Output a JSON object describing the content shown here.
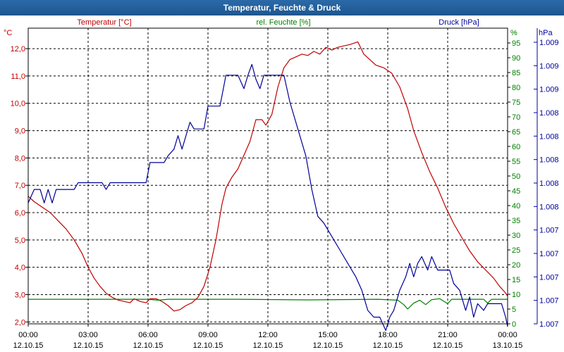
{
  "window": {
    "title": "Temperatur, Feuchte & Druck"
  },
  "colors": {
    "temperature": "#c00000",
    "humidity": "#008000",
    "pressure": "#000099",
    "grid": "#000000",
    "title_bg": "#1f5a94"
  },
  "chart_data": {
    "type": "line",
    "title": "Temperatur, Feuchte & Druck",
    "x_range_hours": [
      0,
      24
    ],
    "x_ticks": [
      {
        "time": "00:00",
        "date": "12.10.15"
      },
      {
        "time": "03:00",
        "date": "12.10.15"
      },
      {
        "time": "06:00",
        "date": "12.10.15"
      },
      {
        "time": "09:00",
        "date": "12.10.15"
      },
      {
        "time": "12:00",
        "date": "12.10.15"
      },
      {
        "time": "15:00",
        "date": "12.10.15"
      },
      {
        "time": "18:00",
        "date": "12.10.15"
      },
      {
        "time": "21:00",
        "date": "12.10.15"
      },
      {
        "time": "00:00",
        "date": "13.10.15"
      }
    ],
    "axes": {
      "temperature": {
        "label": "Temperatur [°C]",
        "unit": "°C",
        "ylim": [
          1.93,
          12.75
        ],
        "ticks": [
          "2,0",
          "3,0",
          "4,0",
          "5,0",
          "6,0",
          "7,0",
          "8,0",
          "9,0",
          "10,0",
          "11,0",
          "12,0"
        ]
      },
      "humidity": {
        "label": "rel. Feuchte [%]",
        "unit": "%",
        "ylim": [
          0,
          100
        ],
        "ticks": [
          "0",
          "5",
          "10",
          "15",
          "20",
          "25",
          "30",
          "35",
          "40",
          "45",
          "50",
          "55",
          "60",
          "65",
          "70",
          "75",
          "80",
          "85",
          "90",
          "95"
        ]
      },
      "pressure": {
        "label": "Druck [hPa]",
        "unit": "hPa",
        "ylim": [
          1007.0,
          1009.2
        ],
        "ticks": [
          "1.007",
          "1.007",
          "1.007",
          "1.007",
          "1.007",
          "1.008",
          "1.008",
          "1.008",
          "1.008",
          "1.008",
          "1.009",
          "1.009",
          "1.009"
        ]
      }
    },
    "series": [
      {
        "name": "Temperatur",
        "axis": "temperature",
        "points": [
          [
            0,
            6.6
          ],
          [
            0.3,
            6.4
          ],
          [
            0.7,
            6.2
          ],
          [
            1.1,
            6.0
          ],
          [
            1.5,
            5.7
          ],
          [
            1.9,
            5.4
          ],
          [
            2.3,
            5.0
          ],
          [
            2.7,
            4.5
          ],
          [
            3.0,
            4.0
          ],
          [
            3.3,
            3.6
          ],
          [
            3.6,
            3.3
          ],
          [
            3.9,
            3.05
          ],
          [
            4.2,
            2.9
          ],
          [
            4.5,
            2.8
          ],
          [
            4.8,
            2.75
          ],
          [
            5.1,
            2.7
          ],
          [
            5.3,
            2.85
          ],
          [
            5.6,
            2.75
          ],
          [
            5.9,
            2.7
          ],
          [
            6.1,
            2.85
          ],
          [
            6.4,
            2.85
          ],
          [
            6.7,
            2.75
          ],
          [
            7.0,
            2.6
          ],
          [
            7.3,
            2.4
          ],
          [
            7.6,
            2.45
          ],
          [
            7.9,
            2.6
          ],
          [
            8.2,
            2.7
          ],
          [
            8.5,
            2.9
          ],
          [
            8.8,
            3.3
          ],
          [
            9.1,
            4.0
          ],
          [
            9.4,
            5.0
          ],
          [
            9.7,
            6.3
          ],
          [
            9.9,
            6.9
          ],
          [
            10.2,
            7.3
          ],
          [
            10.5,
            7.6
          ],
          [
            10.8,
            8.1
          ],
          [
            11.1,
            8.6
          ],
          [
            11.4,
            9.4
          ],
          [
            11.7,
            9.4
          ],
          [
            11.9,
            9.2
          ],
          [
            12.2,
            9.6
          ],
          [
            12.5,
            10.6
          ],
          [
            12.8,
            11.3
          ],
          [
            13.1,
            11.6
          ],
          [
            13.4,
            11.7
          ],
          [
            13.7,
            11.8
          ],
          [
            14.0,
            11.75
          ],
          [
            14.3,
            11.9
          ],
          [
            14.6,
            11.8
          ],
          [
            14.9,
            12.05
          ],
          [
            15.2,
            11.95
          ],
          [
            15.5,
            12.05
          ],
          [
            15.8,
            12.1
          ],
          [
            16.1,
            12.15
          ],
          [
            16.5,
            12.25
          ],
          [
            16.8,
            11.8
          ],
          [
            17.1,
            11.6
          ],
          [
            17.4,
            11.4
          ],
          [
            17.8,
            11.3
          ],
          [
            18.2,
            11.1
          ],
          [
            18.6,
            10.6
          ],
          [
            19.0,
            9.8
          ],
          [
            19.3,
            9.0
          ],
          [
            19.7,
            8.2
          ],
          [
            20.1,
            7.5
          ],
          [
            20.5,
            6.9
          ],
          [
            20.9,
            6.2
          ],
          [
            21.3,
            5.6
          ],
          [
            21.7,
            5.1
          ],
          [
            22.1,
            4.6
          ],
          [
            22.5,
            4.2
          ],
          [
            22.9,
            3.9
          ],
          [
            23.3,
            3.6
          ],
          [
            23.6,
            3.3
          ],
          [
            23.85,
            3.1
          ],
          [
            24.0,
            2.95
          ]
        ]
      },
      {
        "name": "rel. Feuchte",
        "axis": "humidity",
        "points": [
          [
            0,
            8.3
          ],
          [
            6.0,
            8.3
          ],
          [
            6.5,
            8.0
          ],
          [
            7.0,
            8.3
          ],
          [
            10.5,
            8.3
          ],
          [
            14.0,
            8.1
          ],
          [
            17.5,
            8.3
          ],
          [
            18.5,
            8.0
          ],
          [
            18.8,
            6.5
          ],
          [
            19.0,
            5.0
          ],
          [
            19.3,
            7.0
          ],
          [
            19.6,
            8.0
          ],
          [
            19.9,
            6.5
          ],
          [
            20.2,
            8.2
          ],
          [
            20.6,
            8.5
          ],
          [
            21.0,
            6.8
          ],
          [
            21.2,
            8.3
          ],
          [
            22.8,
            8.3
          ],
          [
            23.0,
            7.0
          ],
          [
            23.2,
            8.3
          ],
          [
            24.0,
            8.3
          ]
        ]
      },
      {
        "name": "Druck",
        "axis": "pressure",
        "points": [
          [
            0,
            1007.9
          ],
          [
            0.3,
            1008.0
          ],
          [
            0.6,
            1008.0
          ],
          [
            0.8,
            1007.9
          ],
          [
            1.0,
            1008.0
          ],
          [
            1.2,
            1007.9
          ],
          [
            1.4,
            1008.0
          ],
          [
            2.3,
            1008.0
          ],
          [
            2.5,
            1008.05
          ],
          [
            3.7,
            1008.05
          ],
          [
            3.9,
            1008.0
          ],
          [
            4.1,
            1008.05
          ],
          [
            5.9,
            1008.05
          ],
          [
            6.1,
            1008.2
          ],
          [
            6.8,
            1008.2
          ],
          [
            7.0,
            1008.25
          ],
          [
            7.3,
            1008.3
          ],
          [
            7.5,
            1008.4
          ],
          [
            7.7,
            1008.3
          ],
          [
            7.9,
            1008.4
          ],
          [
            8.1,
            1008.5
          ],
          [
            8.3,
            1008.45
          ],
          [
            8.8,
            1008.45
          ],
          [
            9.0,
            1008.62
          ],
          [
            9.6,
            1008.62
          ],
          [
            9.9,
            1008.85
          ],
          [
            10.5,
            1008.85
          ],
          [
            10.8,
            1008.75
          ],
          [
            11.0,
            1008.85
          ],
          [
            11.2,
            1008.93
          ],
          [
            11.4,
            1008.82
          ],
          [
            11.6,
            1008.75
          ],
          [
            11.8,
            1008.85
          ],
          [
            12.8,
            1008.85
          ],
          [
            13.1,
            1008.65
          ],
          [
            13.5,
            1008.45
          ],
          [
            13.9,
            1008.25
          ],
          [
            14.2,
            1008.0
          ],
          [
            14.5,
            1007.8
          ],
          [
            14.8,
            1007.75
          ],
          [
            15.2,
            1007.65
          ],
          [
            15.6,
            1007.55
          ],
          [
            16.0,
            1007.45
          ],
          [
            16.4,
            1007.35
          ],
          [
            16.7,
            1007.25
          ],
          [
            17.0,
            1007.1
          ],
          [
            17.3,
            1007.05
          ],
          [
            17.6,
            1007.05
          ],
          [
            17.9,
            1006.95
          ],
          [
            18.1,
            1007.05
          ],
          [
            18.3,
            1007.1
          ],
          [
            18.6,
            1007.25
          ],
          [
            18.9,
            1007.35
          ],
          [
            19.1,
            1007.45
          ],
          [
            19.3,
            1007.35
          ],
          [
            19.5,
            1007.45
          ],
          [
            19.7,
            1007.5
          ],
          [
            20.0,
            1007.4
          ],
          [
            20.2,
            1007.5
          ],
          [
            20.5,
            1007.4
          ],
          [
            21.1,
            1007.4
          ],
          [
            21.3,
            1007.3
          ],
          [
            21.6,
            1007.25
          ],
          [
            21.9,
            1007.1
          ],
          [
            22.1,
            1007.2
          ],
          [
            22.3,
            1007.05
          ],
          [
            22.5,
            1007.15
          ],
          [
            22.8,
            1007.1
          ],
          [
            23.0,
            1007.15
          ],
          [
            23.7,
            1007.15
          ],
          [
            23.9,
            1007.05
          ],
          [
            24.0,
            1006.98
          ]
        ]
      }
    ]
  }
}
